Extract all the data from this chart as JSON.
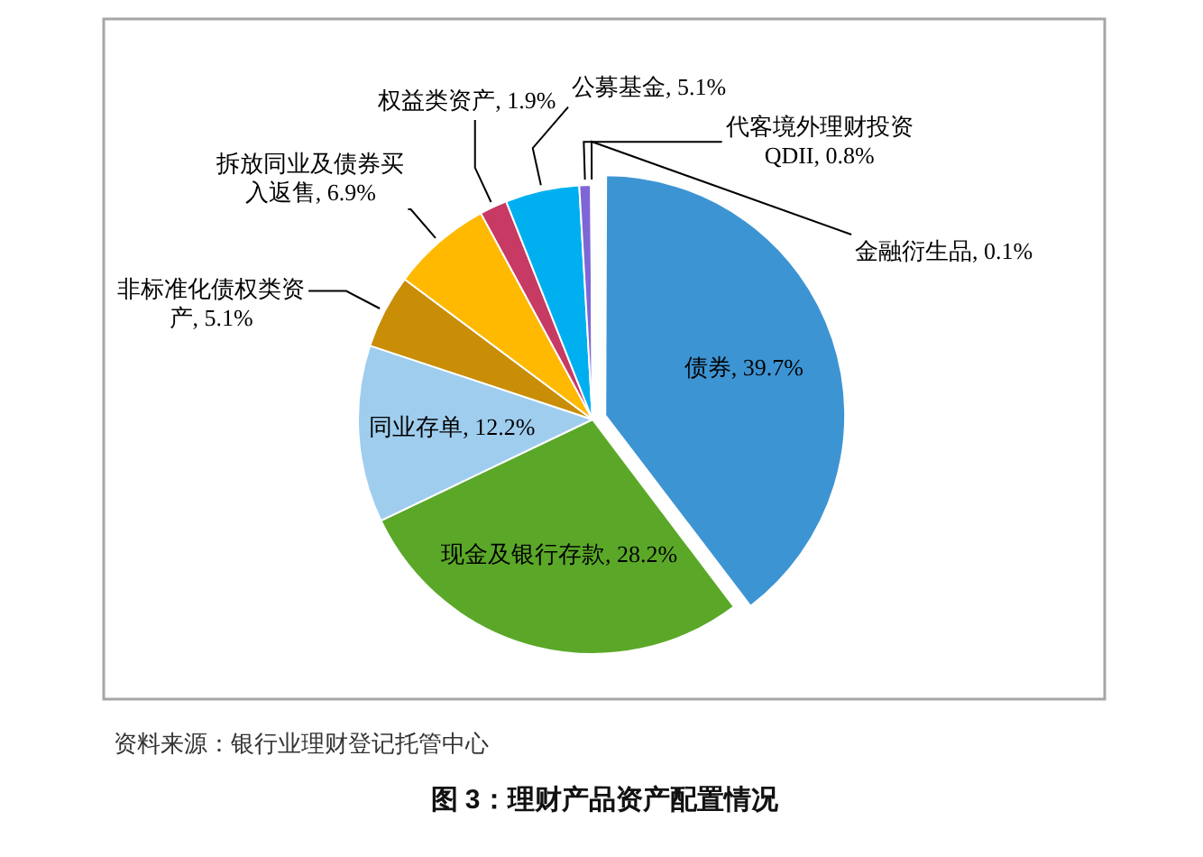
{
  "chart_data": {
    "type": "pie",
    "title": "图 3：理财产品资产配置情况",
    "annotations": [
      "资料来源：银行业理财登记托管中心"
    ],
    "categories": [
      "债券",
      "现金及银行存款",
      "同业存单",
      "非标准化债权类资产",
      "拆放同业及债券买入返售",
      "权益类资产",
      "公募基金",
      "代客境外理财投资QDII",
      "金融衍生品"
    ],
    "values": [
      39.7,
      28.2,
      12.2,
      5.1,
      6.9,
      1.9,
      5.1,
      0.8,
      0.1
    ],
    "value_labels": [
      "39.7%",
      "28.2%",
      "12.2%",
      "5.1%",
      "6.9%",
      "1.9%",
      "5.1%",
      "0.8%",
      "0.1%"
    ],
    "colors": [
      "#3d94d3",
      "#5ba829",
      "#9fcdee",
      "#c98d06",
      "#ffb900",
      "#c63a63",
      "#00afef",
      "#7f66d6",
      "#9b4b2a"
    ],
    "legend": false
  }
}
